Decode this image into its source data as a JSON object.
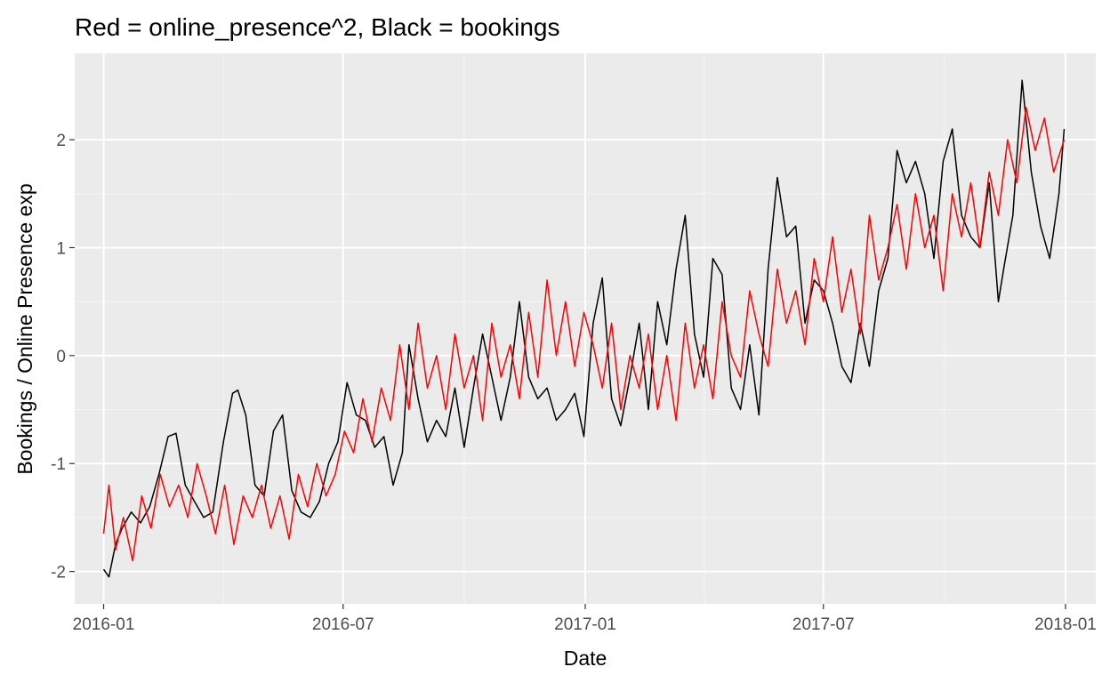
{
  "chart_data": {
    "type": "line",
    "title": "Red = online_presence^2, Black = bookings",
    "xlabel": "Date",
    "ylabel": "Bookings / Online Presence exp",
    "x_ticks": [
      "2016-01",
      "2016-07",
      "2017-01",
      "2017-07",
      "2018-01"
    ],
    "y_ticks": [
      "-2",
      "-1",
      "0",
      "1",
      "2"
    ],
    "xlim": [
      "2015-12-10",
      "2018-01-24"
    ],
    "ylim": [
      -2.3,
      2.8
    ],
    "grid": true,
    "legend": "none",
    "colors": {
      "panel": "#ebebeb",
      "grid_major": "#ffffff",
      "grid_minor": "#f5f5f5",
      "tick": "#333333"
    },
    "series": [
      {
        "color": "#000000",
        "x": [
          "2016-01-01",
          "2016-01-05",
          "2016-01-10",
          "2016-01-15",
          "2016-01-22",
          "2016-01-29",
          "2016-02-05",
          "2016-02-12",
          "2016-02-19",
          "2016-02-25",
          "2016-03-03",
          "2016-03-10",
          "2016-03-17",
          "2016-03-24",
          "2016-04-01",
          "2016-04-08",
          "2016-04-12",
          "2016-04-18",
          "2016-04-25",
          "2016-05-02",
          "2016-05-09",
          "2016-05-16",
          "2016-05-23",
          "2016-05-30",
          "2016-06-06",
          "2016-06-13",
          "2016-06-20",
          "2016-06-27",
          "2016-07-04",
          "2016-07-11",
          "2016-07-18",
          "2016-07-25",
          "2016-08-01",
          "2016-08-08",
          "2016-08-15",
          "2016-08-20",
          "2016-08-27",
          "2016-09-03",
          "2016-09-10",
          "2016-09-17",
          "2016-09-24",
          "2016-10-01",
          "2016-10-08",
          "2016-10-15",
          "2016-10-22",
          "2016-10-29",
          "2016-11-05",
          "2016-11-12",
          "2016-11-19",
          "2016-11-26",
          "2016-12-03",
          "2016-12-10",
          "2016-12-17",
          "2016-12-24",
          "2016-12-31",
          "2017-01-07",
          "2017-01-14",
          "2017-01-21",
          "2017-01-28",
          "2017-02-04",
          "2017-02-11",
          "2017-02-18",
          "2017-02-25",
          "2017-03-04",
          "2017-03-11",
          "2017-03-18",
          "2017-03-25",
          "2017-04-01",
          "2017-04-08",
          "2017-04-15",
          "2017-04-22",
          "2017-04-29",
          "2017-05-06",
          "2017-05-13",
          "2017-05-20",
          "2017-05-27",
          "2017-06-03",
          "2017-06-10",
          "2017-06-17",
          "2017-06-24",
          "2017-07-01",
          "2017-07-08",
          "2017-07-15",
          "2017-07-22",
          "2017-07-29",
          "2017-08-05",
          "2017-08-12",
          "2017-08-19",
          "2017-08-26",
          "2017-09-02",
          "2017-09-09",
          "2017-09-16",
          "2017-09-23",
          "2017-09-30",
          "2017-10-07",
          "2017-10-14",
          "2017-10-21",
          "2017-10-28",
          "2017-11-04",
          "2017-11-11",
          "2017-11-15",
          "2017-11-22",
          "2017-11-29",
          "2017-12-06",
          "2017-12-13",
          "2017-12-20",
          "2017-12-27",
          "2017-12-31"
        ],
        "y": [
          -1.98,
          -2.05,
          -1.75,
          -1.6,
          -1.45,
          -1.55,
          -1.4,
          -1.1,
          -0.75,
          -0.72,
          -1.2,
          -1.35,
          -1.5,
          -1.45,
          -0.8,
          -0.35,
          -0.32,
          -0.55,
          -1.2,
          -1.3,
          -0.7,
          -0.55,
          -1.25,
          -1.45,
          -1.5,
          -1.35,
          -1.0,
          -0.8,
          -0.25,
          -0.55,
          -0.6,
          -0.85,
          -0.75,
          -1.2,
          -0.9,
          0.1,
          -0.4,
          -0.8,
          -0.6,
          -0.75,
          -0.3,
          -0.85,
          -0.3,
          0.2,
          -0.2,
          -0.6,
          -0.2,
          0.5,
          -0.2,
          -0.4,
          -0.3,
          -0.6,
          -0.5,
          -0.35,
          -0.75,
          0.3,
          0.72,
          -0.4,
          -0.65,
          -0.2,
          0.3,
          -0.5,
          0.5,
          0.1,
          0.8,
          1.3,
          0.2,
          -0.2,
          0.9,
          0.75,
          -0.3,
          -0.5,
          0.1,
          -0.55,
          0.8,
          1.65,
          1.1,
          1.2,
          0.3,
          0.7,
          0.6,
          0.3,
          -0.1,
          -0.25,
          0.3,
          -0.1,
          0.6,
          0.9,
          1.9,
          1.6,
          1.8,
          1.5,
          0.9,
          1.8,
          2.1,
          1.3,
          1.1,
          1.0,
          1.6,
          0.5,
          0.8,
          1.3,
          2.55,
          1.7,
          1.2,
          0.9,
          1.5,
          2.1
        ]
      },
      {
        "color": "#ff0000",
        "x": [
          "2016-01-01",
          "2016-01-05",
          "2016-01-10",
          "2016-01-16",
          "2016-01-23",
          "2016-01-30",
          "2016-02-06",
          "2016-02-13",
          "2016-02-20",
          "2016-02-27",
          "2016-03-05",
          "2016-03-12",
          "2016-03-19",
          "2016-03-26",
          "2016-04-02",
          "2016-04-09",
          "2016-04-16",
          "2016-04-23",
          "2016-04-30",
          "2016-05-07",
          "2016-05-14",
          "2016-05-21",
          "2016-05-28",
          "2016-06-04",
          "2016-06-11",
          "2016-06-18",
          "2016-06-25",
          "2016-07-02",
          "2016-07-09",
          "2016-07-16",
          "2016-07-23",
          "2016-07-30",
          "2016-08-06",
          "2016-08-13",
          "2016-08-20",
          "2016-08-27",
          "2016-09-03",
          "2016-09-10",
          "2016-09-17",
          "2016-09-24",
          "2016-10-01",
          "2016-10-08",
          "2016-10-15",
          "2016-10-22",
          "2016-10-29",
          "2016-11-05",
          "2016-11-12",
          "2016-11-19",
          "2016-11-26",
          "2016-12-03",
          "2016-12-10",
          "2016-12-17",
          "2016-12-24",
          "2016-12-31",
          "2017-01-07",
          "2017-01-14",
          "2017-01-21",
          "2017-01-28",
          "2017-02-04",
          "2017-02-11",
          "2017-02-18",
          "2017-02-25",
          "2017-03-04",
          "2017-03-11",
          "2017-03-18",
          "2017-03-25",
          "2017-04-01",
          "2017-04-08",
          "2017-04-15",
          "2017-04-22",
          "2017-04-29",
          "2017-05-06",
          "2017-05-13",
          "2017-05-20",
          "2017-05-27",
          "2017-06-03",
          "2017-06-10",
          "2017-06-17",
          "2017-06-24",
          "2017-07-01",
          "2017-07-08",
          "2017-07-15",
          "2017-07-22",
          "2017-07-29",
          "2017-08-05",
          "2017-08-12",
          "2017-08-19",
          "2017-08-26",
          "2017-09-02",
          "2017-09-09",
          "2017-09-16",
          "2017-09-23",
          "2017-09-30",
          "2017-10-07",
          "2017-10-14",
          "2017-10-21",
          "2017-10-28",
          "2017-11-04",
          "2017-11-11",
          "2017-11-18",
          "2017-11-25",
          "2017-12-02",
          "2017-12-09",
          "2017-12-16",
          "2017-12-23",
          "2017-12-31"
        ],
        "y": [
          -1.65,
          -1.2,
          -1.8,
          -1.5,
          -1.9,
          -1.3,
          -1.6,
          -1.1,
          -1.4,
          -1.2,
          -1.5,
          -1.0,
          -1.3,
          -1.65,
          -1.2,
          -1.75,
          -1.3,
          -1.5,
          -1.2,
          -1.6,
          -1.3,
          -1.7,
          -1.1,
          -1.4,
          -1.0,
          -1.3,
          -1.1,
          -0.7,
          -0.9,
          -0.4,
          -0.8,
          -0.3,
          -0.6,
          0.1,
          -0.5,
          0.3,
          -0.3,
          0.0,
          -0.5,
          0.2,
          -0.3,
          0.0,
          -0.6,
          0.3,
          -0.2,
          0.1,
          -0.4,
          0.4,
          -0.2,
          0.7,
          0.0,
          0.5,
          -0.1,
          0.4,
          0.1,
          -0.3,
          0.3,
          -0.5,
          0.0,
          -0.3,
          0.2,
          -0.5,
          0.0,
          -0.6,
          0.3,
          -0.3,
          0.1,
          -0.4,
          0.5,
          0.0,
          -0.2,
          0.6,
          0.2,
          -0.1,
          0.8,
          0.3,
          0.6,
          0.1,
          0.9,
          0.5,
          1.1,
          0.4,
          0.8,
          0.2,
          1.3,
          0.7,
          1.0,
          1.4,
          0.8,
          1.5,
          1.0,
          1.3,
          0.6,
          1.5,
          1.1,
          1.6,
          1.0,
          1.7,
          1.3,
          2.0,
          1.6,
          2.3,
          1.9,
          2.2,
          1.7,
          2.0
        ]
      }
    ]
  }
}
